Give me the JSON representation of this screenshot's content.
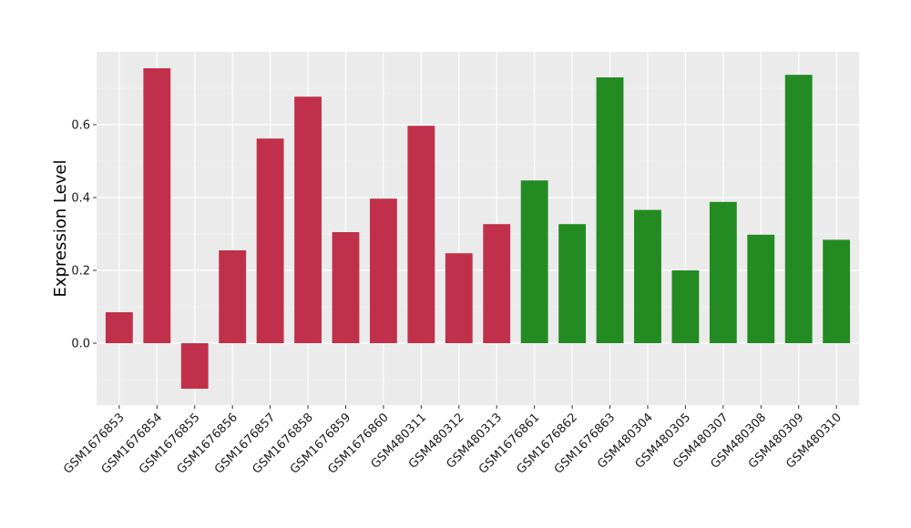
{
  "chart_data": {
    "type": "bar",
    "xlabel": "",
    "ylabel": "Expression Level",
    "ylim": [
      -0.17,
      0.8
    ],
    "yticks": [
      0.0,
      0.2,
      0.4,
      0.6
    ],
    "ytick_labels": [
      "0.0",
      "0.2",
      "0.4",
      "0.6"
    ],
    "grid": true,
    "legend": "none",
    "categories": [
      "GSM1676853",
      "GSM1676854",
      "GSM1676855",
      "GSM1676856",
      "GSM1676857",
      "GSM1676858",
      "GSM1676859",
      "GSM1676860",
      "GSM480311",
      "GSM480312",
      "GSM480313",
      "GSM1676861",
      "GSM1676862",
      "GSM1676863",
      "GSM480304",
      "GSM480305",
      "GSM480307",
      "GSM480308",
      "GSM480309",
      "GSM480310"
    ],
    "values": [
      0.085,
      0.755,
      -0.125,
      0.255,
      0.562,
      0.677,
      0.305,
      0.397,
      0.597,
      0.247,
      0.327,
      0.447,
      0.327,
      0.73,
      0.366,
      0.2,
      0.388,
      0.298,
      0.737,
      0.284
    ],
    "groups": [
      "red",
      "red",
      "red",
      "red",
      "red",
      "red",
      "red",
      "red",
      "red",
      "red",
      "red",
      "green",
      "green",
      "green",
      "green",
      "green",
      "green",
      "green",
      "green",
      "green"
    ],
    "colors": {
      "red": "#c1304a",
      "green": "#238b22",
      "panel": "#ebebeb",
      "grid_major": "#ffffff",
      "grid_minor": "#f5f5f5",
      "tick": "#333333"
    }
  }
}
